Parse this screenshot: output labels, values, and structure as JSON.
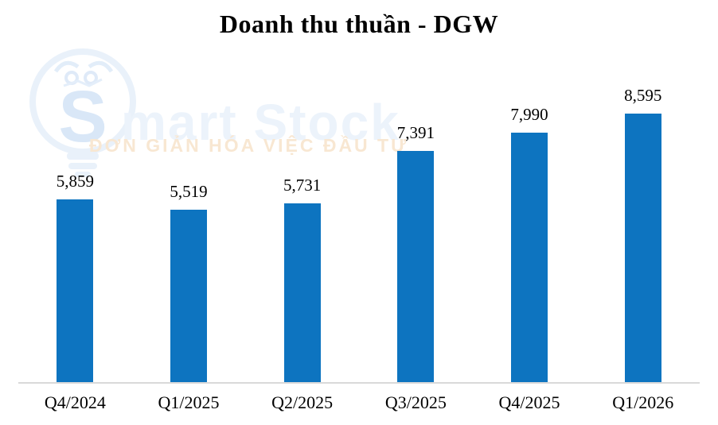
{
  "page": {
    "background": "#ffffff"
  },
  "chart_data": {
    "type": "bar",
    "title": "Doanh thu thuần - DGW",
    "categories": [
      "Q4/2024",
      "Q1/2025",
      "Q2/2025",
      "Q3/2025",
      "Q4/2025",
      "Q1/2026"
    ],
    "values": [
      5859,
      5519,
      5731,
      7391,
      7990,
      8595
    ],
    "value_labels": [
      "5,859",
      "5,519",
      "5,731",
      "7,391",
      "7,990",
      "8,595"
    ],
    "xlabel": "",
    "ylabel": "",
    "ylim": [
      0,
      8595
    ],
    "grid": false,
    "legend": "none",
    "bar_color": "#0d74c0",
    "axis_line_color": "#d9d9d9",
    "text_color": "#000000"
  },
  "watermark": {
    "brand": "Smart Stock",
    "tagline": "ĐƠN GIẢN HÓA VIỆC ĐẦU TƯ",
    "icon": "lightbulb-bull-icon",
    "bulb_color": "#e9f1fa",
    "s_color": "#d9e7f7",
    "brand_text_color": "#ecf3fb",
    "tagline_color": "#f8e7d2"
  }
}
